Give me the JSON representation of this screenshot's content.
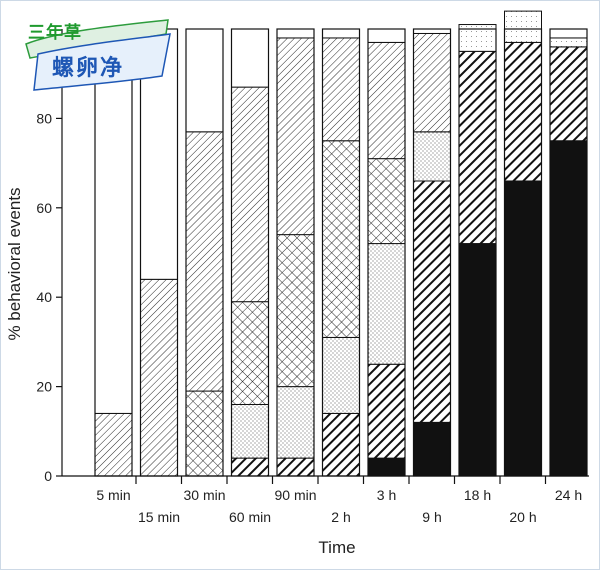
{
  "chart_data": {
    "type": "bar",
    "stacked": true,
    "ylabel": "% behavioral events",
    "xlabel": "Time",
    "ylim": [
      0,
      100
    ],
    "yticks": [
      0,
      20,
      40,
      60,
      80
    ],
    "categories": [
      "5 min",
      "15 min",
      "30 min",
      "60 min",
      "90 min",
      "2 h",
      "3 h",
      "9 h",
      "18 h",
      "20 h",
      "24 h"
    ],
    "series": [
      {
        "pattern": "solid",
        "values": [
          0,
          0,
          0,
          0,
          0,
          0,
          4,
          12,
          52,
          66,
          75
        ]
      },
      {
        "pattern": "heavy-hatch",
        "values": [
          0,
          0,
          0,
          4,
          4,
          14,
          21,
          54,
          43,
          31,
          21
        ]
      },
      {
        "pattern": "stipple",
        "values": [
          0,
          0,
          0,
          12,
          16,
          17,
          27,
          11,
          0,
          0,
          0
        ]
      },
      {
        "pattern": "crosshatch",
        "values": [
          0,
          0,
          19,
          23,
          34,
          44,
          19,
          0,
          0,
          0,
          0
        ]
      },
      {
        "pattern": "light-hatch",
        "values": [
          14,
          44,
          58,
          48,
          44,
          23,
          26,
          22,
          0,
          0,
          0
        ]
      },
      {
        "pattern": "light-stipple",
        "values": [
          0,
          0,
          0,
          0,
          0,
          0,
          0,
          0,
          6,
          7,
          2
        ]
      },
      {
        "pattern": "blank",
        "values": [
          86,
          56,
          23,
          13,
          2,
          2,
          3,
          1,
          0,
          0,
          2
        ]
      }
    ],
    "colors": {
      "ink": "#111111",
      "paper": "#ffffff"
    }
  },
  "logo": {
    "top": "三年草",
    "main": "螺卵净"
  }
}
